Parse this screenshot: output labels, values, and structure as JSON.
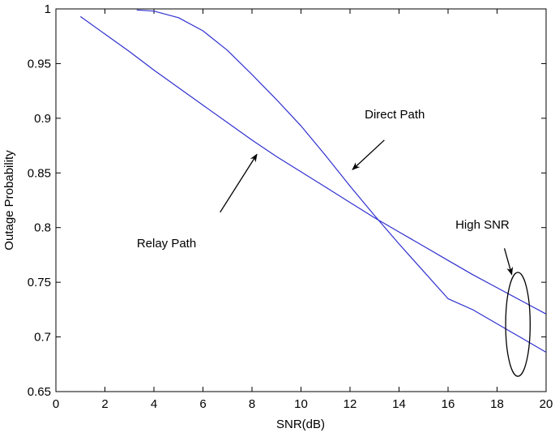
{
  "chart_data": {
    "type": "line",
    "title": "",
    "xlabel": "SNR(dB)",
    "ylabel": "Outage Probability",
    "xlim": [
      0,
      20
    ],
    "ylim": [
      0.65,
      1
    ],
    "xticks": [
      0,
      2,
      4,
      6,
      8,
      10,
      12,
      14,
      16,
      18,
      20
    ],
    "xtick_labels": [
      "0",
      "2",
      "4",
      "6",
      "8",
      "10",
      "12",
      "14",
      "16",
      "18",
      "20"
    ],
    "yticks": [
      0.65,
      0.7,
      0.75,
      0.8,
      0.85,
      0.9,
      0.95,
      1
    ],
    "ytick_labels": [
      "0.65",
      "0.7",
      "0.75",
      "0.8",
      "0.85",
      "0.9",
      "0.95",
      "1"
    ],
    "grid": false,
    "legend": "none",
    "line_color": "#3030d0",
    "series": [
      {
        "x": [
          1,
          2,
          3,
          4,
          5,
          6,
          7,
          8,
          9,
          10,
          11,
          12,
          13,
          14,
          15,
          16,
          17,
          18,
          19,
          20
        ],
        "y": [
          0.993,
          0.977,
          0.961,
          0.944,
          0.928,
          0.912,
          0.896,
          0.88,
          0.865,
          0.851,
          0.837,
          0.823,
          0.809,
          0.796,
          0.783,
          0.77,
          0.757,
          0.745,
          0.733,
          0.721
        ]
      },
      {
        "x": [
          3.3,
          4,
          5,
          6,
          7,
          8,
          9,
          10,
          11,
          12,
          13,
          14,
          15,
          16,
          17,
          18,
          19,
          20
        ],
        "y": [
          0.999,
          0.998,
          0.992,
          0.98,
          0.962,
          0.94,
          0.917,
          0.893,
          0.866,
          0.838,
          0.811,
          0.785,
          0.76,
          0.735,
          0.725,
          0.712,
          0.699,
          0.686
        ]
      }
    ],
    "annotations": [
      {
        "text": "Direct Path",
        "text_x": 12.6,
        "text_y": 0.9,
        "arrow_from_x": 13.4,
        "arrow_from_y": 0.88,
        "arrow_to_x": 12.1,
        "arrow_to_y": 0.853
      },
      {
        "text": "Relay Path",
        "text_x": 3.3,
        "text_y": 0.782,
        "arrow_from_x": 6.7,
        "arrow_from_y": 0.814,
        "arrow_to_x": 8.2,
        "arrow_to_y": 0.867
      },
      {
        "text": "High SNR",
        "text_x": 16.3,
        "text_y": 0.799,
        "arrow_from_x": 18.3,
        "arrow_from_y": 0.781,
        "arrow_to_x": 18.6,
        "arrow_to_y": 0.757
      }
    ],
    "ellipse": {
      "cx": 18.85,
      "cy": 0.7115,
      "rx": 0.5,
      "ry": 0.0475
    }
  }
}
